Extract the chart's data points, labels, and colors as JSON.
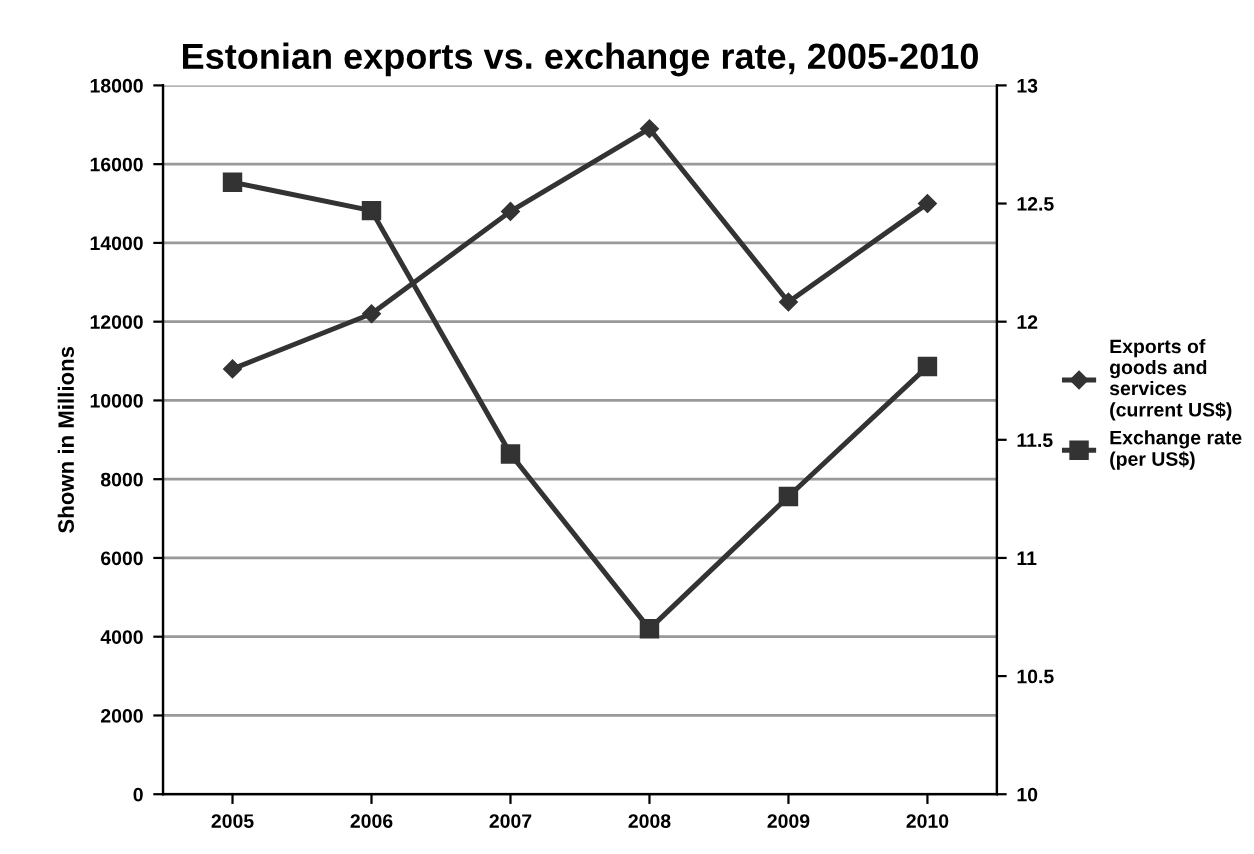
{
  "chart_data": {
    "type": "line",
    "title": "Estonian exports vs. exchange rate, 2005-2010",
    "ylabel": "Shown in Millions",
    "categories": [
      "2005",
      "2006",
      "2007",
      "2008",
      "2009",
      "2010"
    ],
    "series": [
      {
        "name": "Exports of goods and services (current US$)",
        "color": "#333333",
        "values": [
          10800,
          12200,
          14800,
          16900,
          12500,
          15000
        ],
        "marker": "diamond"
      },
      {
        "name": "Exchange rate (per US$)",
        "color": "#333333",
        "values": [
          12.59,
          12.47,
          11.44,
          10.7,
          11.26,
          11.81
        ],
        "marker": "square",
        "axis": "y2"
      }
    ],
    "ylim": [
      0,
      18000
    ],
    "yticks": [
      0,
      2000,
      4000,
      6000,
      8000,
      10000,
      12000,
      14000,
      16000,
      18000
    ],
    "y2lim": [
      10,
      13
    ],
    "y2ticks": [
      10,
      10.5,
      11,
      11.5,
      12,
      12.5,
      13
    ],
    "grid": "y",
    "legend": "right",
    "line_style": "solid"
  }
}
